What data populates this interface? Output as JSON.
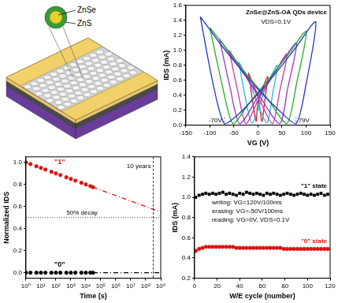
{
  "schematic": {
    "labels": [
      "ZnSe",
      "ZnS"
    ]
  },
  "chart_data": [
    {
      "type": "line",
      "title": "ZnSe@ZnS-OA QDs device",
      "subtitle": "VDS=0.1V",
      "x_label": "VG (V)",
      "y_label": "IDS (mA)",
      "xlim": [
        -150,
        150
      ],
      "xticks": [
        -150,
        -100,
        -50,
        0,
        50,
        100,
        150
      ],
      "ylim": [
        0,
        1.6
      ],
      "yticks": [
        {
          "value": 0,
          "label": "0.0"
        },
        0.2,
        0.4,
        0.6,
        0.8,
        {
          "value": 1,
          "label": "1.0"
        },
        1.2,
        1.4,
        1.6
      ],
      "grid": false,
      "annotations": [
        {
          "text": "-70V",
          "x": -70
        },
        {
          "text": "79V",
          "x": 79
        }
      ],
      "series": [
        {
          "color": "#2233cc",
          "x": [
            -120,
            -80,
            -40,
            0,
            40,
            79,
            100,
            120,
            80,
            40,
            0,
            -40,
            -70,
            -95,
            -120
          ],
          "values": [
            1.45,
            1.1,
            0.78,
            0.48,
            0.22,
            0.02,
            0.55,
            1.38,
            1.05,
            0.72,
            0.42,
            0.15,
            0.02,
            0.6,
            1.45
          ]
        },
        {
          "color": "#22aa22",
          "x": [
            -100,
            -60,
            -20,
            20,
            60,
            80,
            100,
            60,
            20,
            -20,
            -52,
            -75,
            -100
          ],
          "values": [
            1.3,
            0.98,
            0.65,
            0.35,
            0.02,
            0.55,
            1.25,
            0.92,
            0.6,
            0.28,
            0.02,
            0.55,
            1.3
          ]
        },
        {
          "color": "#9933cc",
          "x": [
            -80,
            -40,
            0,
            45,
            62,
            80,
            40,
            0,
            -38,
            -58,
            -80
          ],
          "values": [
            1.15,
            0.78,
            0.42,
            0.02,
            0.5,
            1.1,
            0.75,
            0.38,
            0.02,
            0.5,
            1.15
          ]
        },
        {
          "color": "#cc33aa",
          "x": [
            -60,
            -30,
            0,
            30,
            45,
            60,
            30,
            0,
            -25,
            -42,
            -60
          ],
          "values": [
            1.0,
            0.7,
            0.38,
            0.02,
            0.45,
            0.95,
            0.65,
            0.33,
            0.02,
            0.45,
            1.0
          ]
        },
        {
          "color": "#22bbdd",
          "x": [
            -40,
            -15,
            18,
            30,
            40,
            15,
            -12,
            -28,
            -40
          ],
          "values": [
            0.85,
            0.52,
            0.03,
            0.4,
            0.8,
            0.48,
            0.03,
            0.42,
            0.85
          ]
        },
        {
          "color": "#dd2222",
          "x": [
            -20,
            0,
            8,
            14,
            20,
            0,
            -4,
            -12,
            -20
          ],
          "values": [
            0.7,
            0.38,
            0.05,
            0.32,
            0.65,
            0.3,
            0.05,
            0.35,
            0.7
          ]
        }
      ]
    },
    {
      "type": "scatter",
      "x_label": "Time (s)",
      "y_label": "Normalized IDS",
      "log": "x",
      "xlim": [
        1,
        1000000000
      ],
      "xticks": [
        {
          "value": 1,
          "label": "10⁰"
        },
        {
          "value": 10,
          "label": "10¹"
        },
        {
          "value": 100,
          "label": "10²"
        },
        {
          "value": 1000,
          "label": "10³"
        },
        {
          "value": 10000,
          "label": "10⁴"
        },
        {
          "value": 100000,
          "label": "10⁵"
        },
        {
          "value": 1000000,
          "label": "10⁶"
        },
        {
          "value": 10000000,
          "label": "10⁷"
        },
        {
          "value": 100000000,
          "label": "10⁸"
        },
        {
          "value": 1000000000,
          "label": "10⁹"
        }
      ],
      "ylim": [
        -0.05,
        1.05
      ],
      "yticks": [
        {
          "value": 0,
          "label": "0.0"
        },
        0.2,
        0.4,
        0.6,
        0.8,
        {
          "value": 1,
          "label": "1.0"
        }
      ],
      "grid": false,
      "annotations": [
        {
          "text": "50% decay",
          "y": 0.5
        },
        {
          "text": "10 years",
          "x": 315360000
        }
      ],
      "series": [
        {
          "name": "\"1\"",
          "color": "#dd1111",
          "marker": "circle",
          "x": [
            1,
            2,
            5,
            10,
            20,
            50,
            100,
            200,
            500,
            1000,
            2000,
            5000,
            10000,
            20000,
            30000
          ],
          "values": [
            1.0,
            0.985,
            0.965,
            0.95,
            0.935,
            0.915,
            0.9,
            0.885,
            0.865,
            0.85,
            0.835,
            0.815,
            0.8,
            0.785,
            0.775
          ]
        },
        {
          "color": "#dd1111",
          "line_style": "dashdot",
          "x": [
            30000,
            1000000000
          ],
          "values": [
            0.775,
            0.55
          ]
        },
        {
          "name": "\"0\"",
          "color": "#000000",
          "marker": "circle",
          "x": [
            1,
            2,
            5,
            10,
            20,
            50,
            100,
            200,
            500,
            1000,
            2000,
            5000,
            10000,
            20000,
            30000
          ],
          "values": [
            0,
            0,
            0,
            0,
            0,
            0,
            0,
            0,
            0,
            0,
            0,
            0,
            0,
            0,
            0
          ]
        },
        {
          "color": "#000000",
          "line_style": "dashdot",
          "x": [
            30000,
            1000000000
          ],
          "values": [
            0,
            0
          ]
        }
      ]
    },
    {
      "type": "scatter",
      "x_label": "W/E cycle (number)",
      "y_label": "IDS (mA)",
      "xlim": [
        0,
        120
      ],
      "xticks": [
        0,
        20,
        40,
        60,
        80,
        100,
        120
      ],
      "ylim": [
        0.2,
        1.4
      ],
      "yticks": [
        0.2,
        0.4,
        0.6,
        0.8,
        {
          "value": 1,
          "label": "1.0"
        },
        1.2,
        1.4
      ],
      "grid": false,
      "annotations": [
        {
          "text": "writing: VG=120V/100ms"
        },
        {
          "text": "erasing: VG=-50V/100ms"
        },
        {
          "text": "reading: VG=0V, VDS=0.1V"
        }
      ],
      "x": [
        1,
        4,
        7,
        10,
        13,
        16,
        19,
        22,
        25,
        28,
        31,
        34,
        37,
        40,
        43,
        46,
        49,
        52,
        55,
        58,
        61,
        64,
        67,
        70,
        73,
        76,
        79,
        82,
        85,
        88,
        91,
        94,
        97,
        100,
        103,
        106,
        109,
        112,
        115,
        118
      ],
      "series": [
        {
          "name": "\"1\" state",
          "color": "#000000",
          "marker": "square",
          "values": [
            1.0,
            1.02,
            1.03,
            1.04,
            1.03,
            1.04,
            1.03,
            1.04,
            1.05,
            1.03,
            1.04,
            1.03,
            1.02,
            1.04,
            1.03,
            1.05,
            1.04,
            1.03,
            1.04,
            1.03,
            1.02,
            1.04,
            1.03,
            1.04,
            1.03,
            1.02,
            1.03,
            1.04,
            1.03,
            1.02,
            1.03,
            1.04,
            1.03,
            1.02,
            1.03,
            1.02,
            1.03,
            1.04,
            1.02,
            1.03
          ]
        },
        {
          "name": "\"0\" state",
          "color": "#dd1111",
          "marker": "circle",
          "values": [
            0.47,
            0.49,
            0.5,
            0.51,
            0.51,
            0.51,
            0.51,
            0.51,
            0.51,
            0.51,
            0.51,
            0.51,
            0.5,
            0.5,
            0.5,
            0.5,
            0.5,
            0.5,
            0.5,
            0.5,
            0.5,
            0.5,
            0.5,
            0.5,
            0.5,
            0.5,
            0.49,
            0.49,
            0.49,
            0.49,
            0.49,
            0.49,
            0.49,
            0.49,
            0.49,
            0.49,
            0.49,
            0.49,
            0.49,
            0.49
          ]
        }
      ]
    }
  ]
}
